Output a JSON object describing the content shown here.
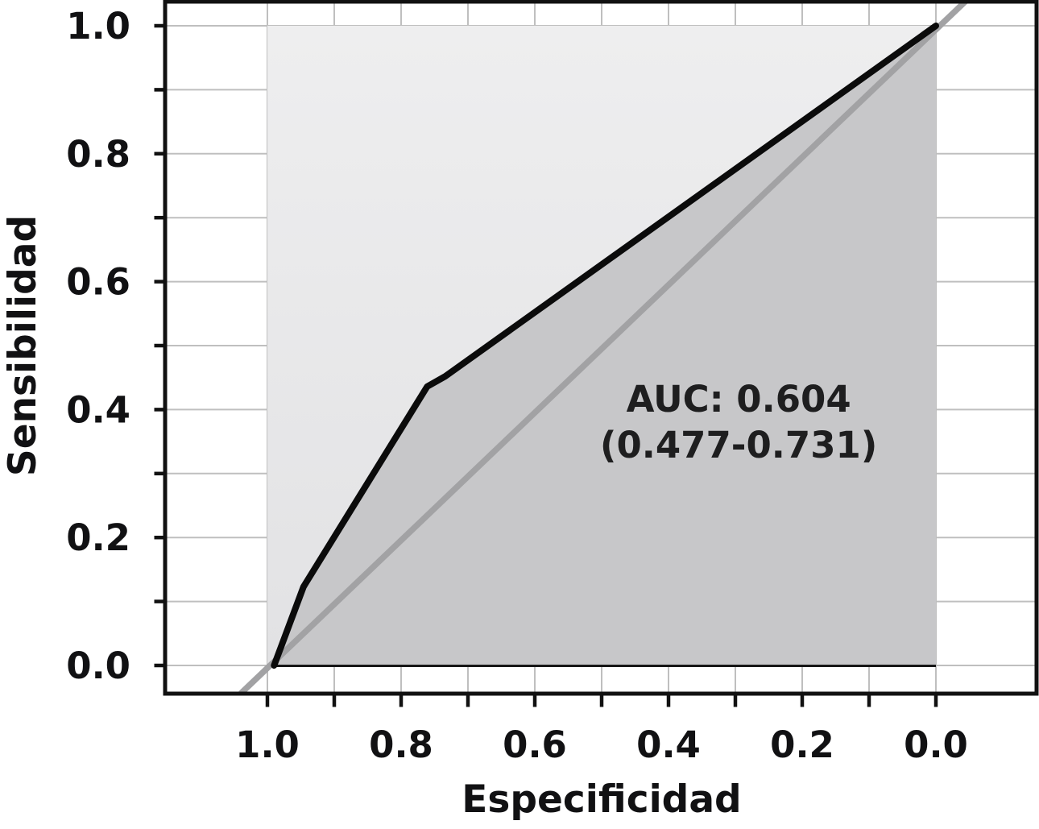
{
  "figure": {
    "description": "ROC curve plot"
  },
  "chart_data": {
    "type": "line",
    "title": "",
    "xlabel": "Especificidad",
    "ylabel": "Sensibilidad",
    "x_axis": {
      "label": "Especificidad",
      "direction": "reversed",
      "range": [
        1.0,
        0.0
      ],
      "tick_values": [
        1.0,
        0.9,
        0.8,
        0.7,
        0.6,
        0.5,
        0.4,
        0.3,
        0.2,
        0.1,
        0.0
      ],
      "tick_labels": [
        "1.0",
        "",
        "0.8",
        "",
        "0.6",
        "",
        "0.4",
        "",
        "0.2",
        "",
        "0.0"
      ]
    },
    "y_axis": {
      "label": "Sensibilidad",
      "range": [
        0.0,
        1.0
      ],
      "tick_values": [
        0.0,
        0.1,
        0.2,
        0.3,
        0.4,
        0.5,
        0.6,
        0.7,
        0.8,
        0.9,
        1.0
      ],
      "tick_labels": [
        "0.0",
        "",
        "0.2",
        "",
        "0.4",
        "",
        "0.6",
        "",
        "0.8",
        "",
        "1.0"
      ]
    },
    "grid": "on, every 0.1, both axes",
    "series": [
      {
        "name": "roc-curve",
        "points_spec_sens": [
          [
            0.99,
            0.0
          ],
          [
            0.946,
            0.123
          ],
          [
            0.761,
            0.436
          ],
          [
            0.734,
            0.452
          ],
          [
            0.0,
            1.0
          ]
        ]
      },
      {
        "name": "reference-diagonal",
        "points_spec_sens": [
          [
            1.039,
            -0.043
          ],
          [
            -0.045,
            1.039
          ]
        ]
      }
    ],
    "baseline_spec_sens": [
      [
        0.99,
        0.0
      ],
      [
        0.0,
        0.0
      ]
    ],
    "annotation": {
      "line1": "AUC: 0.604",
      "line2": "(0.477-0.731)",
      "auc": 0.604,
      "ci_low": 0.477,
      "ci_high": 0.731,
      "position_spec_sens": [
        0.295,
        0.417
      ]
    },
    "colors": {
      "curve": "#0b0b0b",
      "diagonal": "#a2a2a4",
      "baseline": "#161616",
      "area_above_curve_top": "#eeeeef",
      "area_above_curve_bottom": "#e2e2e4",
      "area_under_curve": "#c7c7c9",
      "gridline": "#bfbfbf",
      "frame": "#111111",
      "background": "#ffffff"
    },
    "legend": "none"
  }
}
